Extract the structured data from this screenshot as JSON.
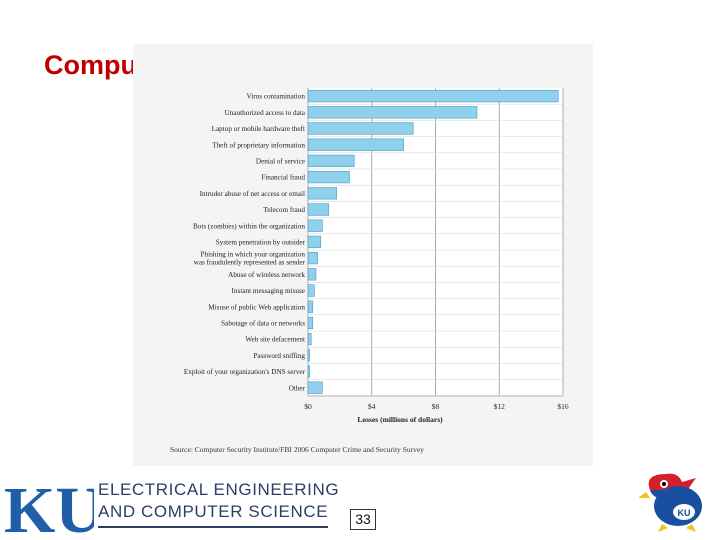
{
  "slide": {
    "title": "Computer Security Losses",
    "page_number": "33"
  },
  "footer": {
    "logo_text": "KU",
    "dept_line1": "ELECTRICAL ENGINEERING",
    "dept_line2": "AND COMPUTER SCIENCE",
    "mascot_badge": "KU"
  },
  "chart_data": {
    "type": "bar",
    "orientation": "horizontal",
    "categories": [
      "Virus contamination",
      "Unauthorized access to data",
      "Laptop or mobile hardware theft",
      "Theft of proprietary information",
      "Denial of service",
      "Financial fraud",
      "Intruder abuse of net access or email",
      "Telecom fraud",
      "Bots (zombies) within the organization",
      "System penetration by outsider",
      "Phishing in which your organization was fraudulently represented as sender",
      "Abuse of wireless network",
      "Instant messaging misuse",
      "Misuse of public Web application",
      "Sabotage of data or networks",
      "Web site defacement",
      "Password sniffing",
      "Exploit of your organization's DNS server",
      "Other"
    ],
    "category_lines": [
      [
        "Virus contamination"
      ],
      [
        "Unauthorized access to data"
      ],
      [
        "Laptop or mobile hardware theft"
      ],
      [
        "Theft of proprietary information"
      ],
      [
        "Denial of service"
      ],
      [
        "Financial fraud"
      ],
      [
        "Intruder abuse of net access or email"
      ],
      [
        "Telecom fraud"
      ],
      [
        "Bots (zombies) within the organization"
      ],
      [
        "System penetration by outsider"
      ],
      [
        "Phishing in which your organization",
        "was fraudulently represented as sender"
      ],
      [
        "Abuse of wireless network"
      ],
      [
        "Instant messaging misuse"
      ],
      [
        "Misuse of public Web application"
      ],
      [
        "Sabotage of data or networks"
      ],
      [
        "Web site defacement"
      ],
      [
        "Password sniffing"
      ],
      [
        "Exploit of your organization's DNS server"
      ],
      [
        "Other"
      ]
    ],
    "values": [
      15.7,
      10.6,
      6.6,
      6.0,
      2.9,
      2.6,
      1.8,
      1.3,
      0.9,
      0.8,
      0.6,
      0.5,
      0.4,
      0.3,
      0.3,
      0.2,
      0.1,
      0.1,
      0.9
    ],
    "xticks": [
      0,
      4,
      8,
      12,
      16
    ],
    "xtick_labels": [
      "$0",
      "$4",
      "$8",
      "$12",
      "$16"
    ],
    "xlim": [
      0,
      16
    ],
    "xlabel": "Losses (millions of dollars)",
    "source": "Source: Computer Security Institute/FBI 2006 Computer Crime and Security Survey",
    "bar_color": "#8fd1ec",
    "bar_edge": "#4a9cc4",
    "grid": true
  }
}
